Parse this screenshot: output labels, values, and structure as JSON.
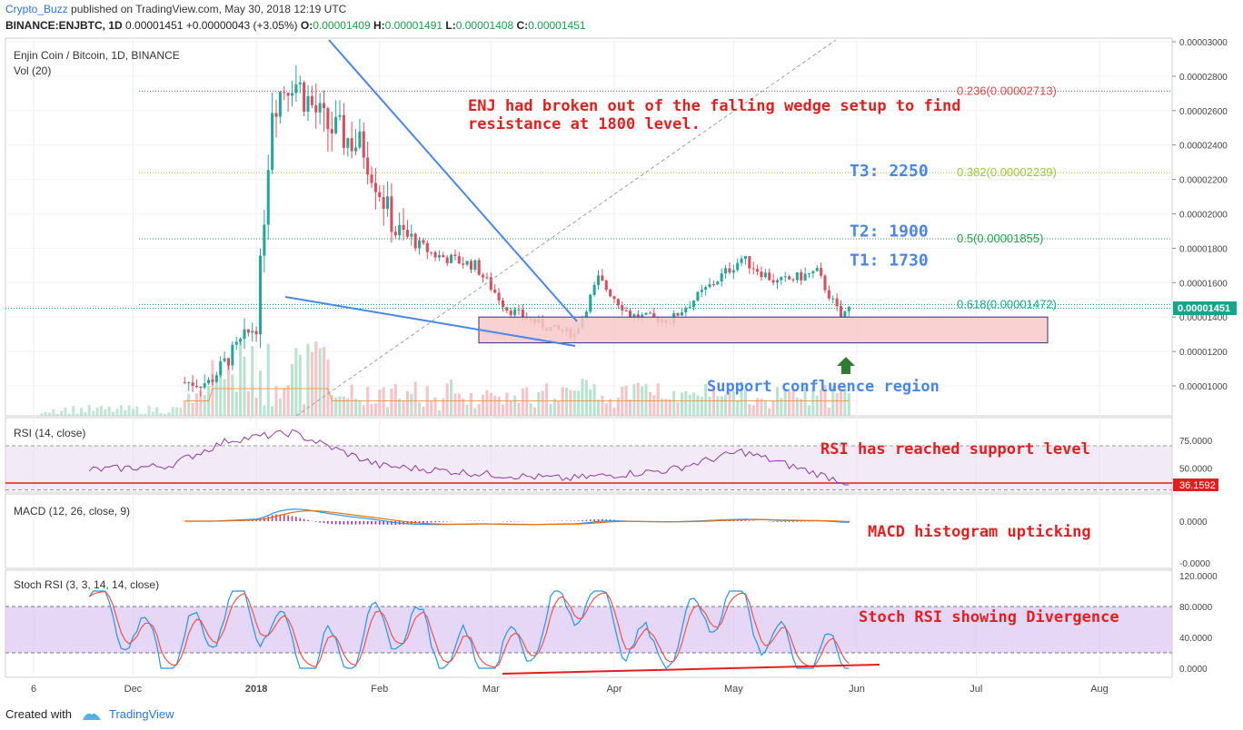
{
  "header": {
    "author": "Crypto_Buzz",
    "published_text": "published on TradingView.com, May 30, 2018 12:19 UTC",
    "symbol": "BINANCE:ENJBTC, 1D",
    "price": "0.00001451",
    "change": "+0.00000043 (+3.05%)",
    "o_label": "O:",
    "o": "0.00001409",
    "h_label": "H:",
    "h": "0.00001491",
    "l_label": "L:",
    "l": "0.00001408",
    "c_label": "C:",
    "c": "0.00001451"
  },
  "main_pane": {
    "title": "Enjin Coin / Bitcoin, 1D, BINANCE",
    "vol_label": "Vol (20)",
    "price_ticks": [
      "0.00003000",
      "0.00002800",
      "0.00002600",
      "0.00002400",
      "0.00002200",
      "0.00002000",
      "0.00001800",
      "0.00001600",
      "0.00001400",
      "0.00001200",
      "0.00001000"
    ],
    "last_price_label": "0.00001451",
    "fib_levels": [
      {
        "label": "0.236(0.00002713)",
        "value": 2.713e-05,
        "color": "#d44b4b"
      },
      {
        "label": "0.382(0.00002239)",
        "value": 2.239e-05,
        "color": "#9bc53d"
      },
      {
        "label": "0.5(0.00001855)",
        "value": 1.855e-05,
        "color": "#22a447"
      },
      {
        "label": "0.618(0.00001472)",
        "value": 1.472e-05,
        "color": "#17a589"
      }
    ],
    "annotation_main": [
      "ENJ had broken out of the falling wedge setup to find",
      "resistance at 1800 level."
    ],
    "targets": [
      {
        "label": "T3: 2250",
        "value": 2.25e-05
      },
      {
        "label": "T2: 1900",
        "value": 1.9e-05
      },
      {
        "label": "T1: 1730",
        "value": 1.73e-05
      }
    ],
    "support_label": "Support confluence region",
    "support_zone": [
      1.25e-05,
      1.4e-05
    ],
    "support_arrow_color": "#2e7d32",
    "up_color": "#26a69a",
    "down_color": "#d94e5d",
    "wedge_color": "#4a86e8"
  },
  "rsi_pane": {
    "title": "RSI (14, close)",
    "ticks": [
      "75.0000",
      "50.0000"
    ],
    "value_label": "36.1592",
    "band": [
      30,
      70
    ],
    "annotation": "RSI has reached support level",
    "line_color": "#8e3a9e"
  },
  "macd_pane": {
    "title": "MACD (12, 26, close, 9)",
    "ticks": [
      "0.0000",
      "-0.0000"
    ],
    "annotation": "MACD histogram upticking"
  },
  "stoch_pane": {
    "title": "Stoch RSI (3, 3, 14, 14, close)",
    "ticks": [
      "120.0000",
      "80.0000",
      "40.0000",
      "0.0000"
    ],
    "band": [
      20,
      80
    ],
    "annotation": "Stoch RSI showing Divergence"
  },
  "x_axis": {
    "labels": [
      "6",
      "Dec",
      "2018",
      "Feb",
      "Mar",
      "Apr",
      "May",
      "Jun",
      "Jul",
      "Aug"
    ]
  },
  "footer": {
    "created_with": "Created with",
    "brand": "TradingView"
  },
  "chart_data": {
    "type": "candlestick",
    "title": "Enjin Coin / Bitcoin, 1D, BINANCE",
    "x_range": [
      "2017-11-06",
      "2018-08-15"
    ],
    "y_range": [
      9.4e-06,
      3e-05
    ],
    "series": [
      {
        "name": "Enjin Coin / Bitcoin",
        "description": "approximate daily closes",
        "x": [
          "2017-12-20",
          "2018-01-01",
          "2018-01-05",
          "2018-01-10",
          "2018-01-18",
          "2018-01-28",
          "2018-02-05",
          "2018-02-15",
          "2018-02-25",
          "2018-03-05",
          "2018-03-15",
          "2018-03-22",
          "2018-03-28",
          "2018-04-05",
          "2018-04-15",
          "2018-04-25",
          "2018-05-03",
          "2018-05-12",
          "2018-05-22",
          "2018-05-28",
          "2018-05-30"
        ],
        "y": [
          1.02e-05,
          1.36e-05,
          2.65e-05,
          2.8e-05,
          2.52e-05,
          2.38e-05,
          1.9e-05,
          1.76e-05,
          1.7e-05,
          1.45e-05,
          1.34e-05,
          1.3e-05,
          1.62e-05,
          1.41e-05,
          1.38e-05,
          1.58e-05,
          1.74e-05,
          1.6e-05,
          1.66e-05,
          1.4e-05,
          1.45e-05
        ]
      },
      {
        "name": "RSI (14, close)",
        "x": [
          "2017-11-20",
          "2017-12-10",
          "2017-12-25",
          "2018-01-10",
          "2018-02-01",
          "2018-03-01",
          "2018-03-20",
          "2018-04-15",
          "2018-05-03",
          "2018-05-30"
        ],
        "y": [
          48,
          52,
          75,
          82,
          52,
          44,
          40,
          48,
          65,
          36.1592
        ]
      },
      {
        "name": "Stoch RSI %K",
        "x": [
          "2017-11-20",
          "2017-12-10",
          "2017-12-28",
          "2018-01-15",
          "2018-02-05",
          "2018-03-01",
          "2018-03-25",
          "2018-04-10",
          "2018-05-01",
          "2018-05-15",
          "2018-05-30"
        ],
        "y": [
          90,
          10,
          92,
          5,
          60,
          0,
          100,
          15,
          100,
          10,
          15
        ]
      }
    ]
  }
}
